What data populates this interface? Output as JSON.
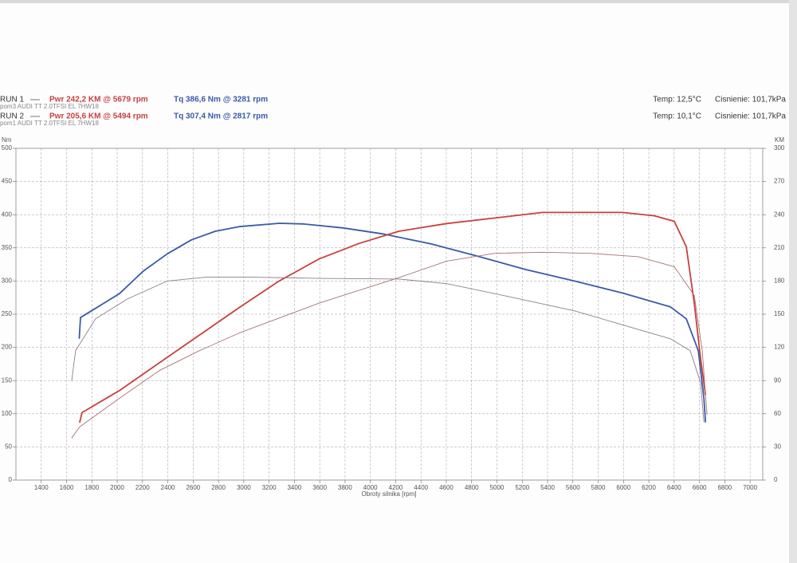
{
  "chart_data": {
    "type": "line",
    "runs": [
      {
        "label": "RUN 1",
        "power": "Pwr  242,2 KM @ 5679 rpm",
        "torque": "Tq 386,6 Nm @ 3281 rpm",
        "car": "pom3 AUDI TT 2.0TFSI EL 7HW18",
        "temp": "Temp: 12,5°C",
        "pressure": "Cisnienie: 101,7kPa"
      },
      {
        "label": "RUN 2",
        "power": "Pwr  205,6 KM @ 5494 rpm",
        "torque": "Tq 307,4 Nm @ 2817 rpm",
        "car": "pom1 AUDI TT 2.0TFSI EL 7HW18",
        "temp": "Temp: 10,1°C",
        "pressure": "Cisnienie: 101,7kPa"
      }
    ],
    "x_label": "Obroty silnika [rpm]",
    "y_label": "Nm",
    "y2_label": "KM",
    "xlim": [
      1200,
      7100
    ],
    "xticks": [
      1400,
      1600,
      1800,
      2000,
      2200,
      2400,
      2600,
      2800,
      3000,
      3200,
      3400,
      3600,
      3800,
      4000,
      4200,
      4400,
      4600,
      4800,
      5000,
      5200,
      5400,
      5600,
      5800,
      6000,
      6200,
      6400,
      6600,
      6800,
      7000
    ],
    "ylim": [
      0,
      500
    ],
    "yticks": [
      0,
      50,
      100,
      150,
      200,
      250,
      300,
      350,
      400,
      450,
      500
    ],
    "y2lim": [
      0,
      300
    ],
    "y2ticks": [
      0,
      30,
      60,
      90,
      120,
      150,
      180,
      210,
      240,
      270,
      300
    ],
    "grid": true,
    "series": [
      {
        "color": "#3a5aa8",
        "width": 1.8,
        "axis": "y",
        "x": [
          1700,
          1710,
          2018,
          2207,
          2396,
          2586,
          2775,
          2964,
          3281,
          3469,
          3784,
          4099,
          4478,
          4856,
          5234,
          5613,
          5991,
          6370,
          6496,
          6591,
          6635,
          6648
        ],
        "values": [
          213,
          245,
          281,
          315,
          341,
          362,
          375,
          382,
          387,
          386,
          380,
          371,
          356,
          337,
          317,
          300,
          282,
          261,
          243,
          195,
          123,
          87
        ]
      },
      {
        "color": "#c8403e",
        "width": 1.8,
        "axis": "y2",
        "x": [
          1703,
          1722,
          2018,
          2333,
          2649,
          2964,
          3279,
          3595,
          3910,
          4225,
          4604,
          4982,
          5360,
          5613,
          5991,
          6244,
          6401,
          6496,
          6559,
          6609,
          6648
        ],
        "values": [
          52,
          61,
          81,
          106,
          131,
          156,
          180,
          200,
          214,
          225,
          232,
          237,
          242,
          242,
          242,
          239,
          234,
          211,
          160,
          110,
          77
        ]
      },
      {
        "color": "#8c7f8c",
        "width": 0.9,
        "axis": "y",
        "x": [
          1640,
          1671,
          1829,
          2081,
          2396,
          2712,
          3027,
          3595,
          4225,
          4604,
          5108,
          5613,
          5991,
          6370,
          6527,
          6609,
          6635
        ],
        "values": [
          149,
          195,
          243,
          273,
          300,
          306,
          306,
          304,
          303,
          296,
          276,
          255,
          234,
          213,
          195,
          147,
          87
        ]
      },
      {
        "color": "#a87272",
        "width": 0.9,
        "axis": "y2",
        "x": [
          1640,
          1703,
          2018,
          2333,
          2649,
          2964,
          3595,
          4225,
          4604,
          4982,
          5360,
          5739,
          6117,
          6401,
          6559,
          6622,
          6660
        ],
        "values": [
          38,
          48,
          74,
          99,
          117,
          133,
          160,
          183,
          198,
          205,
          206,
          205,
          202,
          193,
          167,
          117,
          59
        ]
      }
    ]
  }
}
